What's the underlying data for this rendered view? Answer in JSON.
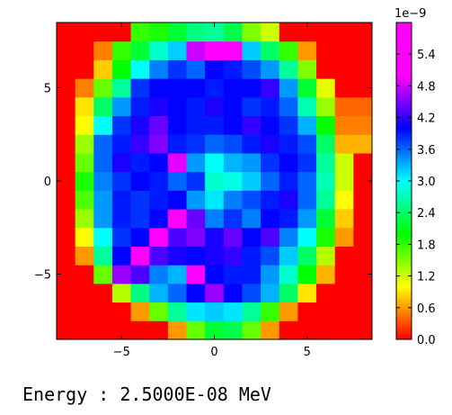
{
  "chart_data": {
    "type": "heatmap",
    "title": "",
    "xlabel": "",
    "ylabel": "",
    "xlim": [
      -8.5,
      8.5
    ],
    "ylim": [
      8.5,
      -8.5
    ],
    "x_ticks": [
      -5,
      0,
      5
    ],
    "y_ticks": [
      -5,
      0,
      5
    ],
    "x_tick_labels": [
      "−5",
      "0",
      "5"
    ],
    "y_tick_labels": [
      "−5",
      "0",
      "5"
    ],
    "grid": false,
    "colormap": "gist_rainbow_r",
    "colorbar": {
      "multiplier_label": "1e−9",
      "range": [
        0.0,
        6.0
      ],
      "ticks": [
        0.0,
        0.6,
        1.2,
        1.8,
        2.4,
        3.0,
        3.6,
        4.2,
        4.8,
        5.4
      ],
      "tick_labels": [
        "0.0",
        "0.6",
        "1.2",
        "1.8",
        "2.4",
        "3.0",
        "3.6",
        "4.2",
        "4.8",
        "5.4"
      ]
    },
    "grid_x_centers": [
      -8,
      -7,
      -6,
      -5,
      -4,
      -3,
      -2,
      -1,
      0,
      1,
      2,
      3,
      4,
      5,
      6,
      7,
      8
    ],
    "grid_y_centers": [
      -8,
      -7,
      -6,
      -5,
      -4,
      -3,
      -2,
      -1,
      0,
      1,
      2,
      3,
      4,
      5,
      6,
      7,
      8
    ],
    "values_e-9": [
      [
        0.0,
        0.0,
        0.0,
        0.0,
        0.0,
        0.0,
        0.6,
        1.6,
        2.2,
        2.3,
        1.6,
        0.6,
        0.0,
        0.0,
        0.0,
        0.0,
        0.0
      ],
      [
        0.0,
        0.0,
        0.0,
        0.0,
        0.6,
        1.6,
        2.6,
        3.1,
        3.2,
        3.1,
        2.6,
        1.8,
        0.6,
        0.0,
        0.0,
        0.0,
        0.0
      ],
      [
        0.0,
        0.0,
        0.0,
        1.3,
        2.5,
        3.3,
        3.6,
        4.0,
        4.6,
        4.0,
        3.7,
        3.3,
        2.4,
        0.9,
        0.0,
        0.0,
        0.0
      ],
      [
        0.0,
        0.0,
        1.6,
        4.6,
        4.3,
        3.5,
        3.3,
        5.0,
        4.0,
        3.9,
        3.9,
        3.4,
        2.8,
        2.0,
        0.7,
        0.0,
        0.0
      ],
      [
        0.0,
        0.6,
        2.6,
        4.0,
        5.4,
        4.3,
        4.1,
        4.0,
        4.1,
        4.2,
        3.9,
        3.7,
        3.2,
        2.4,
        1.3,
        0.0,
        0.0
      ],
      [
        0.0,
        1.0,
        3.0,
        3.8,
        4.0,
        5.5,
        4.3,
        4.5,
        4.1,
        4.4,
        4.0,
        4.3,
        3.5,
        3.0,
        1.9,
        0.6,
        0.0
      ],
      [
        0.0,
        1.4,
        3.4,
        3.9,
        3.8,
        4.0,
        5.6,
        4.4,
        3.5,
        3.8,
        3.5,
        4.0,
        3.9,
        3.4,
        2.2,
        0.8,
        0.0
      ],
      [
        0.0,
        1.7,
        3.4,
        3.9,
        3.8,
        3.9,
        4.0,
        3.4,
        3.1,
        3.5,
        3.7,
        3.9,
        4.1,
        3.6,
        2.6,
        1.0,
        0.0
      ],
      [
        0.0,
        1.9,
        3.5,
        3.8,
        4.0,
        3.9,
        3.6,
        3.8,
        2.8,
        2.9,
        3.2,
        3.6,
        3.9,
        3.6,
        2.7,
        1.2,
        0.0
      ],
      [
        0.0,
        1.6,
        3.6,
        4.1,
        3.9,
        4.0,
        4.9,
        3.4,
        3.0,
        3.3,
        3.4,
        3.8,
        4.0,
        3.8,
        2.6,
        1.2,
        0.0
      ],
      [
        0.0,
        1.4,
        3.6,
        3.9,
        4.2,
        4.5,
        3.9,
        3.8,
        3.6,
        3.7,
        3.9,
        4.1,
        3.9,
        3.7,
        2.4,
        0.7,
        0.7
      ],
      [
        0.0,
        1.0,
        3.0,
        3.8,
        4.1,
        4.4,
        4.0,
        3.9,
        3.9,
        4.0,
        4.2,
        4.0,
        3.8,
        3.3,
        2.0,
        0.5,
        0.5
      ],
      [
        0.0,
        0.9,
        2.4,
        3.4,
        3.9,
        4.1,
        4.0,
        3.9,
        4.1,
        4.0,
        3.8,
        3.9,
        3.6,
        2.7,
        1.4,
        0.4,
        0.4
      ],
      [
        0.0,
        0.5,
        1.6,
        2.6,
        3.8,
        4.0,
        4.0,
        4.0,
        3.9,
        4.0,
        4.0,
        4.2,
        3.4,
        2.2,
        1.1,
        0.0,
        0.0
      ],
      [
        0.0,
        0.0,
        0.8,
        2.0,
        3.0,
        3.5,
        3.8,
        3.6,
        4.0,
        3.9,
        3.7,
        3.4,
        2.6,
        1.5,
        0.0,
        0.0,
        0.0
      ],
      [
        0.0,
        0.0,
        0.5,
        1.8,
        2.2,
        2.8,
        3.2,
        4.8,
        5.2,
        5.0,
        3.2,
        2.4,
        1.8,
        0.6,
        0.0,
        0.0,
        0.0
      ],
      [
        0.0,
        0.0,
        0.0,
        0.0,
        1.8,
        1.9,
        2.2,
        2.5,
        2.6,
        2.3,
        1.5,
        1.2,
        0.0,
        0.0,
        0.0,
        0.0,
        0.0
      ]
    ]
  },
  "caption": {
    "text": "Energy : 2.5000E-08 MeV"
  }
}
